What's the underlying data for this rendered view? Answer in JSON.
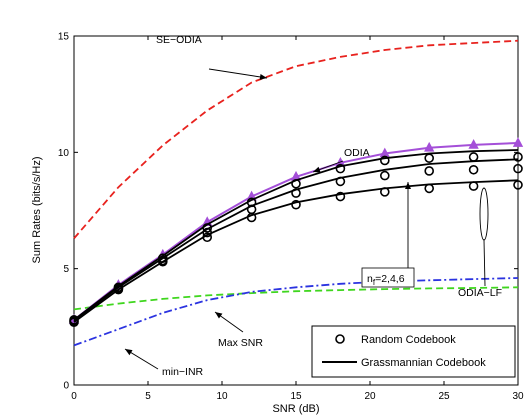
{
  "chart_data": {
    "type": "line",
    "title": "",
    "xlabel": "SNR (dB)",
    "ylabel": "Sum Rates (bits/s/Hz)",
    "xlim": [
      0,
      30
    ],
    "ylim": [
      0,
      15
    ],
    "xticks": [
      0,
      5,
      10,
      15,
      20,
      25,
      30
    ],
    "yticks": [
      0,
      5,
      10,
      15
    ],
    "grid": false,
    "legend_position": "bottom-right",
    "legend": [
      {
        "label": "Random Codebook",
        "marker": "circle"
      },
      {
        "label": "Grassmannian Codebook",
        "marker": "line"
      }
    ],
    "annotations": [
      {
        "text": "SE−ODIA",
        "target": "SE-ODIA"
      },
      {
        "text": "ODIA",
        "target": "ODIA"
      },
      {
        "text": "ODIA−LF",
        "target": "ODIA-LF"
      },
      {
        "text": "Max SNR",
        "target": "Max SNR"
      },
      {
        "text": "min−INR",
        "target": "min-INR"
      },
      {
        "text_main": "n",
        "text_sub": "f",
        "text_rest": "=2,4,6",
        "target": "nf-arrow"
      }
    ],
    "series": [
      {
        "key": "SE-ODIA",
        "color": "#e8221e",
        "dash": "dashed",
        "x": [
          0,
          3,
          6,
          9,
          12,
          15,
          18,
          21,
          24,
          27,
          30
        ],
        "y": [
          6.3,
          8.5,
          10.3,
          11.8,
          13.0,
          13.7,
          14.1,
          14.4,
          14.6,
          14.7,
          14.8
        ]
      },
      {
        "key": "Max SNR",
        "color": "#3fd61e",
        "dash": "dashed",
        "x": [
          0,
          3,
          6,
          9,
          12,
          15,
          18,
          21,
          24,
          27,
          30
        ],
        "y": [
          3.25,
          3.5,
          3.7,
          3.85,
          3.95,
          4.03,
          4.08,
          4.12,
          4.15,
          4.17,
          4.2
        ]
      },
      {
        "key": "min-INR",
        "color": "#2b33e0",
        "dash": "dashdot",
        "x": [
          0,
          3,
          6,
          9,
          12,
          15,
          18,
          21,
          24,
          27,
          30
        ],
        "y": [
          1.7,
          2.4,
          3.1,
          3.65,
          4.0,
          4.2,
          4.35,
          4.45,
          4.5,
          4.55,
          4.6
        ]
      },
      {
        "key": "ODIA",
        "color": "#a44fd8",
        "dash": "solid",
        "marker": "triangle",
        "x": [
          0,
          3,
          6,
          9,
          12,
          15,
          18,
          21,
          24,
          27,
          30
        ],
        "y": [
          2.8,
          4.3,
          5.6,
          7.0,
          8.1,
          8.95,
          9.55,
          9.95,
          10.2,
          10.32,
          10.4
        ]
      },
      {
        "key": "ODIA-LF-nf6-grassmannian",
        "color": "#000000",
        "dash": "solid",
        "x": [
          0,
          3,
          6,
          9,
          12,
          15,
          18,
          21,
          24,
          27,
          30
        ],
        "y": [
          2.8,
          4.25,
          5.55,
          6.9,
          7.95,
          8.8,
          9.4,
          9.75,
          9.95,
          10.05,
          10.1
        ]
      },
      {
        "key": "ODIA-LF-nf4-grassmannian",
        "color": "#000000",
        "dash": "solid",
        "x": [
          0,
          3,
          6,
          9,
          12,
          15,
          18,
          21,
          24,
          27,
          30
        ],
        "y": [
          2.75,
          4.2,
          5.45,
          6.7,
          7.7,
          8.4,
          8.9,
          9.25,
          9.5,
          9.62,
          9.7
        ]
      },
      {
        "key": "ODIA-LF-nf2-grassmannian",
        "color": "#000000",
        "dash": "solid",
        "x": [
          0,
          3,
          6,
          9,
          12,
          15,
          18,
          21,
          24,
          27,
          30
        ],
        "y": [
          2.7,
          4.1,
          5.3,
          6.45,
          7.3,
          7.85,
          8.2,
          8.45,
          8.62,
          8.72,
          8.8
        ]
      },
      {
        "key": "ODIA-LF-nf6-random",
        "color": "#000000",
        "dash": "none",
        "marker": "circle",
        "x": [
          0,
          3,
          6,
          9,
          12,
          15,
          18,
          21,
          24,
          27,
          30
        ],
        "y": [
          2.8,
          4.2,
          5.45,
          6.75,
          7.85,
          8.65,
          9.3,
          9.65,
          9.75,
          9.8,
          9.8
        ]
      },
      {
        "key": "ODIA-LF-nf4-random",
        "color": "#000000",
        "dash": "none",
        "marker": "circle",
        "x": [
          0,
          3,
          6,
          9,
          12,
          15,
          18,
          21,
          24,
          27,
          30
        ],
        "y": [
          2.75,
          4.15,
          5.35,
          6.55,
          7.55,
          8.25,
          8.75,
          9.0,
          9.2,
          9.25,
          9.3
        ]
      },
      {
        "key": "ODIA-LF-nf2-random",
        "color": "#000000",
        "dash": "none",
        "marker": "circle",
        "x": [
          0,
          3,
          6,
          9,
          12,
          15,
          18,
          21,
          24,
          27,
          30
        ],
        "y": [
          2.7,
          4.1,
          5.3,
          6.35,
          7.2,
          7.75,
          8.1,
          8.3,
          8.45,
          8.55,
          8.6
        ]
      }
    ]
  }
}
